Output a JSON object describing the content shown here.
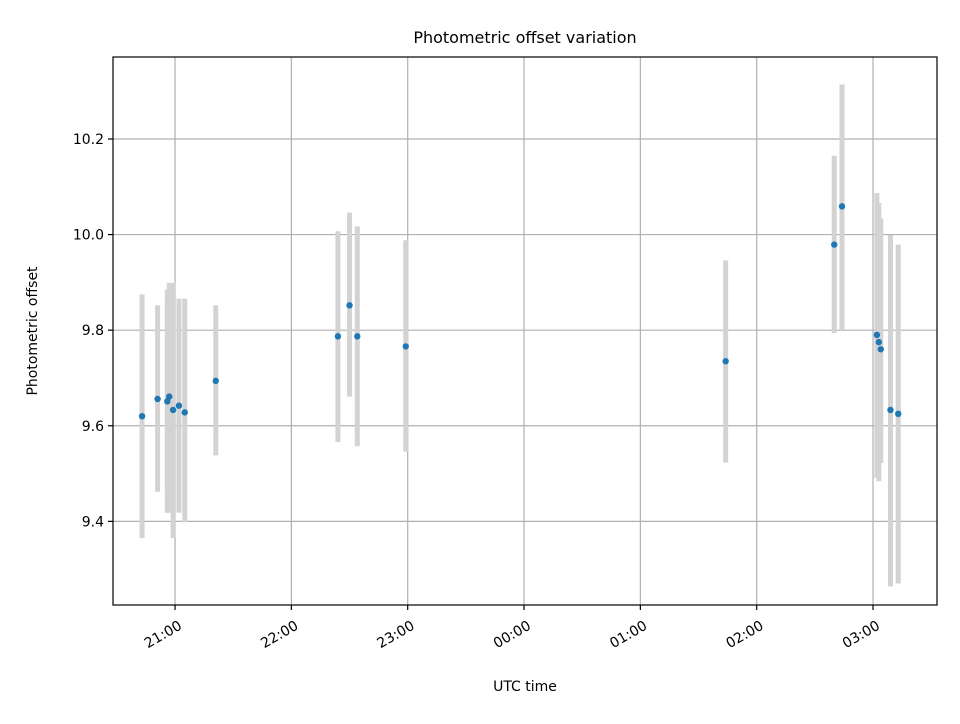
{
  "chart_data": {
    "type": "scatter",
    "title": "Photometric offset variation",
    "xlabel": "UTC time",
    "ylabel": "Photometric offset",
    "grid": true,
    "xlim": [
      "20:28",
      "03:33"
    ],
    "ylim": [
      9.225,
      10.3715
    ],
    "x_ticks": [
      "21:00",
      "22:00",
      "23:00",
      "00:00",
      "01:00",
      "02:00",
      "03:00"
    ],
    "y_ticks": [
      9.4,
      9.6,
      9.8,
      10.0,
      10.2
    ],
    "y_tick_labels": [
      "9.4",
      "9.6",
      "9.8",
      "10.0",
      "10.2"
    ],
    "colors": {
      "point": "#1f77b4",
      "errorbar": "#d3d3d3",
      "grid": "#b0b0b0"
    },
    "points": [
      {
        "x": "20:43",
        "y": 9.62,
        "ylow": 9.365,
        "yhigh": 9.875
      },
      {
        "x": "20:51",
        "y": 9.656,
        "ylow": 9.462,
        "yhigh": 9.852
      },
      {
        "x": "20:56",
        "y": 9.651,
        "ylow": 9.418,
        "yhigh": 9.885
      },
      {
        "x": "20:57",
        "y": 9.661,
        "ylow": 9.418,
        "yhigh": 9.899
      },
      {
        "x": "20:59",
        "y": 9.633,
        "ylow": 9.365,
        "yhigh": 9.899
      },
      {
        "x": "21:02",
        "y": 9.642,
        "ylow": 9.418,
        "yhigh": 9.866
      },
      {
        "x": "21:05",
        "y": 9.628,
        "ylow": 9.398,
        "yhigh": 9.866
      },
      {
        "x": "21:21",
        "y": 9.694,
        "ylow": 9.538,
        "yhigh": 9.852
      },
      {
        "x": "22:24",
        "y": 9.787,
        "ylow": 9.566,
        "yhigh": 10.007
      },
      {
        "x": "22:30",
        "y": 9.852,
        "ylow": 9.661,
        "yhigh": 10.046
      },
      {
        "x": "22:34",
        "y": 9.787,
        "ylow": 9.557,
        "yhigh": 10.017
      },
      {
        "x": "22:59",
        "y": 9.766,
        "ylow": 9.546,
        "yhigh": 9.988
      },
      {
        "x": "01:44",
        "y": 9.735,
        "ylow": 9.523,
        "yhigh": 9.946
      },
      {
        "x": "02:40",
        "y": 9.979,
        "ylow": 9.794,
        "yhigh": 10.165
      },
      {
        "x": "02:44",
        "y": 10.059,
        "ylow": 9.802,
        "yhigh": 10.314
      },
      {
        "x": "03:02",
        "y": 9.79,
        "ylow": 9.491,
        "yhigh": 10.087
      },
      {
        "x": "03:03",
        "y": 9.775,
        "ylow": 9.484,
        "yhigh": 10.066
      },
      {
        "x": "03:04",
        "y": 9.76,
        "ylow": 9.522,
        "yhigh": 10.034
      },
      {
        "x": "03:09",
        "y": 9.633,
        "ylow": 9.264,
        "yhigh": 9.999
      },
      {
        "x": "03:13",
        "y": 9.625,
        "ylow": 9.27,
        "yhigh": 9.979
      }
    ]
  }
}
